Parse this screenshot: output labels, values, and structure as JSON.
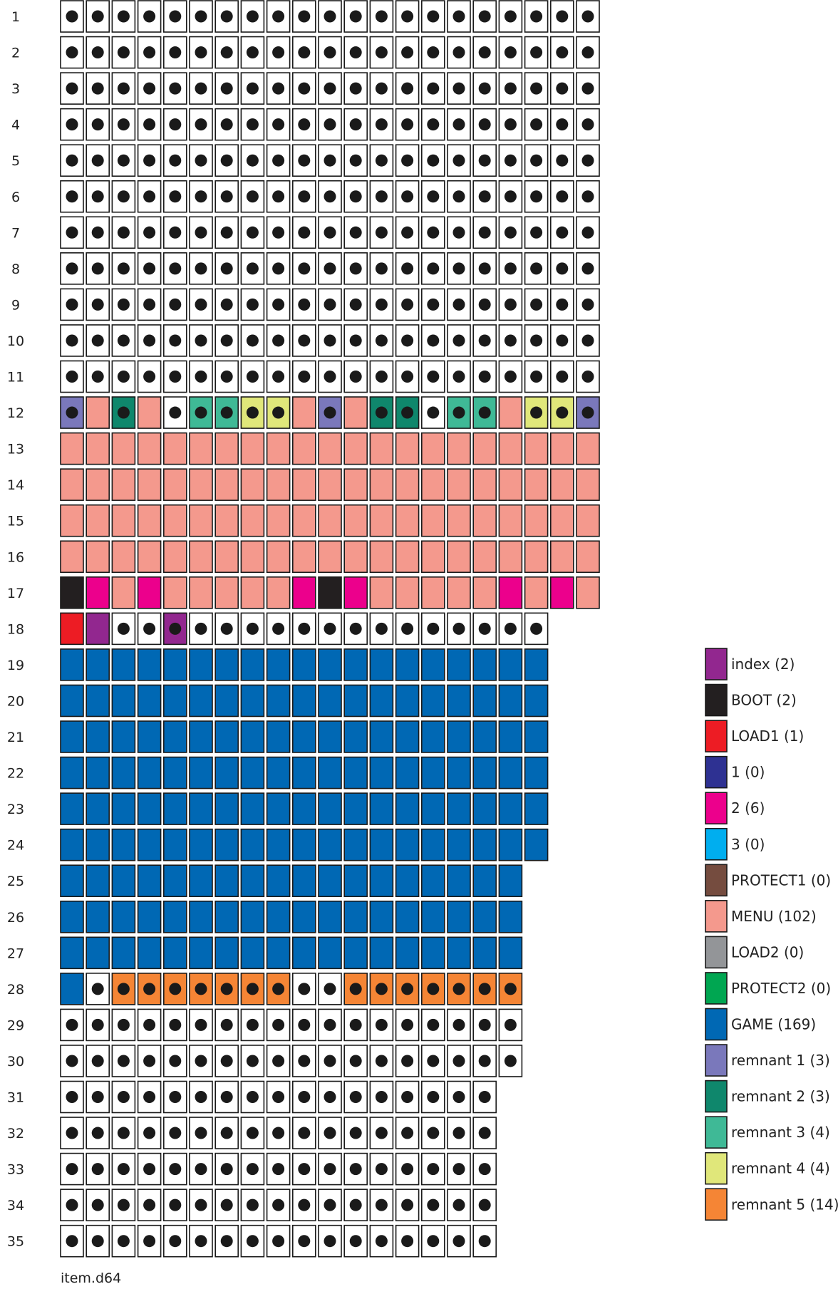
{
  "diagram": {
    "filename": "item.d64",
    "colors": {
      "empty": "#ffffff",
      "index": "#92278f",
      "BOOT": "#231f20",
      "LOAD1": "#ed1c24",
      "1": "#2e3192",
      "2": "#ec008c",
      "3": "#00aeef",
      "PROTECT1": "#754c3f",
      "MENU": "#f4998d",
      "LOAD2": "#939598",
      "PROTECT2": "#00a651",
      "GAME": "#0068b4",
      "remnant 1": "#7a78bb",
      "remnant 2": "#0f876c",
      "remnant 3": "#3fb996",
      "remnant 4": "#e0e77a",
      "remnant 5": "#f58535"
    },
    "legend": [
      {
        "key": "index",
        "label": "index (2)"
      },
      {
        "key": "BOOT",
        "label": "BOOT (2)"
      },
      {
        "key": "LOAD1",
        "label": "LOAD1 (1)"
      },
      {
        "key": "1",
        "label": "1 (0)"
      },
      {
        "key": "2",
        "label": "2 (6)"
      },
      {
        "key": "3",
        "label": "3 (0)"
      },
      {
        "key": "PROTECT1",
        "label": "PROTECT1 (0)"
      },
      {
        "key": "MENU",
        "label": "MENU (102)"
      },
      {
        "key": "LOAD2",
        "label": "LOAD2 (0)"
      },
      {
        "key": "PROTECT2",
        "label": "PROTECT2 (0)"
      },
      {
        "key": "GAME",
        "label": "GAME (169)"
      },
      {
        "key": "remnant 1",
        "label": "remnant 1 (3)"
      },
      {
        "key": "remnant 2",
        "label": "remnant 2 (3)"
      },
      {
        "key": "remnant 3",
        "label": "remnant 3 (4)"
      },
      {
        "key": "remnant 4",
        "label": "remnant 4 (4)"
      },
      {
        "key": "remnant 5",
        "label": "remnant 5 (14)"
      }
    ],
    "tracks": [
      {
        "label": "1",
        "cells": [
          "*E",
          "*E",
          "*E",
          "*E",
          "*E",
          "*E",
          "*E",
          "*E",
          "*E",
          "*E",
          "*E",
          "*E",
          "*E",
          "*E",
          "*E",
          "*E",
          "*E",
          "*E",
          "*E",
          "*E",
          "*E"
        ]
      },
      {
        "label": "2",
        "cells": [
          "*E",
          "*E",
          "*E",
          "*E",
          "*E",
          "*E",
          "*E",
          "*E",
          "*E",
          "*E",
          "*E",
          "*E",
          "*E",
          "*E",
          "*E",
          "*E",
          "*E",
          "*E",
          "*E",
          "*E",
          "*E"
        ]
      },
      {
        "label": "3",
        "cells": [
          "*E",
          "*E",
          "*E",
          "*E",
          "*E",
          "*E",
          "*E",
          "*E",
          "*E",
          "*E",
          "*E",
          "*E",
          "*E",
          "*E",
          "*E",
          "*E",
          "*E",
          "*E",
          "*E",
          "*E",
          "*E"
        ]
      },
      {
        "label": "4",
        "cells": [
          "*E",
          "*E",
          "*E",
          "*E",
          "*E",
          "*E",
          "*E",
          "*E",
          "*E",
          "*E",
          "*E",
          "*E",
          "*E",
          "*E",
          "*E",
          "*E",
          "*E",
          "*E",
          "*E",
          "*E",
          "*E"
        ]
      },
      {
        "label": "5",
        "cells": [
          "*E",
          "*E",
          "*E",
          "*E",
          "*E",
          "*E",
          "*E",
          "*E",
          "*E",
          "*E",
          "*E",
          "*E",
          "*E",
          "*E",
          "*E",
          "*E",
          "*E",
          "*E",
          "*E",
          "*E",
          "*E"
        ]
      },
      {
        "label": "6",
        "cells": [
          "*E",
          "*E",
          "*E",
          "*E",
          "*E",
          "*E",
          "*E",
          "*E",
          "*E",
          "*E",
          "*E",
          "*E",
          "*E",
          "*E",
          "*E",
          "*E",
          "*E",
          "*E",
          "*E",
          "*E",
          "*E"
        ]
      },
      {
        "label": "7",
        "cells": [
          "*E",
          "*E",
          "*E",
          "*E",
          "*E",
          "*E",
          "*E",
          "*E",
          "*E",
          "*E",
          "*E",
          "*E",
          "*E",
          "*E",
          "*E",
          "*E",
          "*E",
          "*E",
          "*E",
          "*E",
          "*E"
        ]
      },
      {
        "label": "8",
        "cells": [
          "*E",
          "*E",
          "*E",
          "*E",
          "*E",
          "*E",
          "*E",
          "*E",
          "*E",
          "*E",
          "*E",
          "*E",
          "*E",
          "*E",
          "*E",
          "*E",
          "*E",
          "*E",
          "*E",
          "*E",
          "*E"
        ]
      },
      {
        "label": "9",
        "cells": [
          "*E",
          "*E",
          "*E",
          "*E",
          "*E",
          "*E",
          "*E",
          "*E",
          "*E",
          "*E",
          "*E",
          "*E",
          "*E",
          "*E",
          "*E",
          "*E",
          "*E",
          "*E",
          "*E",
          "*E",
          "*E"
        ]
      },
      {
        "label": "10",
        "cells": [
          "*E",
          "*E",
          "*E",
          "*E",
          "*E",
          "*E",
          "*E",
          "*E",
          "*E",
          "*E",
          "*E",
          "*E",
          "*E",
          "*E",
          "*E",
          "*E",
          "*E",
          "*E",
          "*E",
          "*E",
          "*E"
        ]
      },
      {
        "label": "11",
        "cells": [
          "*E",
          "*E",
          "*E",
          "*E",
          "*E",
          "*E",
          "*E",
          "*E",
          "*E",
          "*E",
          "*E",
          "*E",
          "*E",
          "*E",
          "*E",
          "*E",
          "*E",
          "*E",
          "*E",
          "*E",
          "*E"
        ]
      },
      {
        "label": "12",
        "cells": [
          "*R1",
          "MENU",
          "*R2",
          "MENU",
          "*E",
          "*R3",
          "*R3",
          "*R4",
          "*R4",
          "MENU",
          "*R1",
          "MENU",
          "*R2",
          "*R2",
          "*E",
          "*R3",
          "*R3",
          "MENU",
          "*R4",
          "*R4",
          "*R1"
        ]
      },
      {
        "label": "13",
        "cells": [
          "MENU",
          "MENU",
          "MENU",
          "MENU",
          "MENU",
          "MENU",
          "MENU",
          "MENU",
          "MENU",
          "MENU",
          "MENU",
          "MENU",
          "MENU",
          "MENU",
          "MENU",
          "MENU",
          "MENU",
          "MENU",
          "MENU",
          "MENU",
          "MENU"
        ]
      },
      {
        "label": "14",
        "cells": [
          "MENU",
          "MENU",
          "MENU",
          "MENU",
          "MENU",
          "MENU",
          "MENU",
          "MENU",
          "MENU",
          "MENU",
          "MENU",
          "MENU",
          "MENU",
          "MENU",
          "MENU",
          "MENU",
          "MENU",
          "MENU",
          "MENU",
          "MENU",
          "MENU"
        ]
      },
      {
        "label": "15",
        "cells": [
          "MENU",
          "MENU",
          "MENU",
          "MENU",
          "MENU",
          "MENU",
          "MENU",
          "MENU",
          "MENU",
          "MENU",
          "MENU",
          "MENU",
          "MENU",
          "MENU",
          "MENU",
          "MENU",
          "MENU",
          "MENU",
          "MENU",
          "MENU",
          "MENU"
        ]
      },
      {
        "label": "16",
        "cells": [
          "MENU",
          "MENU",
          "MENU",
          "MENU",
          "MENU",
          "MENU",
          "MENU",
          "MENU",
          "MENU",
          "MENU",
          "MENU",
          "MENU",
          "MENU",
          "MENU",
          "MENU",
          "MENU",
          "MENU",
          "MENU",
          "MENU",
          "MENU",
          "MENU"
        ]
      },
      {
        "label": "17",
        "cells": [
          "BOOT",
          "2",
          "MENU",
          "2",
          "MENU",
          "MENU",
          "MENU",
          "MENU",
          "MENU",
          "2",
          "BOOT",
          "2",
          "MENU",
          "MENU",
          "MENU",
          "MENU",
          "MENU",
          "2",
          "MENU",
          "2",
          "MENU"
        ]
      },
      {
        "label": "18",
        "cells": [
          "LOAD1",
          "index",
          "*E",
          "*E",
          "*index",
          "*E",
          "*E",
          "*E",
          "*E",
          "*E",
          "*E",
          "*E",
          "*E",
          "*E",
          "*E",
          "*E",
          "*E",
          "*E",
          "*E"
        ]
      },
      {
        "label": "19",
        "cells": [
          "GAME",
          "GAME",
          "GAME",
          "GAME",
          "GAME",
          "GAME",
          "GAME",
          "GAME",
          "GAME",
          "GAME",
          "GAME",
          "GAME",
          "GAME",
          "GAME",
          "GAME",
          "GAME",
          "GAME",
          "GAME",
          "GAME"
        ]
      },
      {
        "label": "20",
        "cells": [
          "GAME",
          "GAME",
          "GAME",
          "GAME",
          "GAME",
          "GAME",
          "GAME",
          "GAME",
          "GAME",
          "GAME",
          "GAME",
          "GAME",
          "GAME",
          "GAME",
          "GAME",
          "GAME",
          "GAME",
          "GAME",
          "GAME"
        ]
      },
      {
        "label": "21",
        "cells": [
          "GAME",
          "GAME",
          "GAME",
          "GAME",
          "GAME",
          "GAME",
          "GAME",
          "GAME",
          "GAME",
          "GAME",
          "GAME",
          "GAME",
          "GAME",
          "GAME",
          "GAME",
          "GAME",
          "GAME",
          "GAME",
          "GAME"
        ]
      },
      {
        "label": "22",
        "cells": [
          "GAME",
          "GAME",
          "GAME",
          "GAME",
          "GAME",
          "GAME",
          "GAME",
          "GAME",
          "GAME",
          "GAME",
          "GAME",
          "GAME",
          "GAME",
          "GAME",
          "GAME",
          "GAME",
          "GAME",
          "GAME",
          "GAME"
        ]
      },
      {
        "label": "23",
        "cells": [
          "GAME",
          "GAME",
          "GAME",
          "GAME",
          "GAME",
          "GAME",
          "GAME",
          "GAME",
          "GAME",
          "GAME",
          "GAME",
          "GAME",
          "GAME",
          "GAME",
          "GAME",
          "GAME",
          "GAME",
          "GAME",
          "GAME"
        ]
      },
      {
        "label": "24",
        "cells": [
          "GAME",
          "GAME",
          "GAME",
          "GAME",
          "GAME",
          "GAME",
          "GAME",
          "GAME",
          "GAME",
          "GAME",
          "GAME",
          "GAME",
          "GAME",
          "GAME",
          "GAME",
          "GAME",
          "GAME",
          "GAME",
          "GAME"
        ]
      },
      {
        "label": "25",
        "cells": [
          "GAME",
          "GAME",
          "GAME",
          "GAME",
          "GAME",
          "GAME",
          "GAME",
          "GAME",
          "GAME",
          "GAME",
          "GAME",
          "GAME",
          "GAME",
          "GAME",
          "GAME",
          "GAME",
          "GAME",
          "GAME"
        ]
      },
      {
        "label": "26",
        "cells": [
          "GAME",
          "GAME",
          "GAME",
          "GAME",
          "GAME",
          "GAME",
          "GAME",
          "GAME",
          "GAME",
          "GAME",
          "GAME",
          "GAME",
          "GAME",
          "GAME",
          "GAME",
          "GAME",
          "GAME",
          "GAME"
        ]
      },
      {
        "label": "27",
        "cells": [
          "GAME",
          "GAME",
          "GAME",
          "GAME",
          "GAME",
          "GAME",
          "GAME",
          "GAME",
          "GAME",
          "GAME",
          "GAME",
          "GAME",
          "GAME",
          "GAME",
          "GAME",
          "GAME",
          "GAME",
          "GAME"
        ]
      },
      {
        "label": "28",
        "cells": [
          "GAME",
          "*E",
          "*R5",
          "*R5",
          "*R5",
          "*R5",
          "*R5",
          "*R5",
          "*R5",
          "*E",
          "*E",
          "*R5",
          "*R5",
          "*R5",
          "*R5",
          "*R5",
          "*R5",
          "*R5"
        ]
      },
      {
        "label": "29",
        "cells": [
          "*E",
          "*E",
          "*E",
          "*E",
          "*E",
          "*E",
          "*E",
          "*E",
          "*E",
          "*E",
          "*E",
          "*E",
          "*E",
          "*E",
          "*E",
          "*E",
          "*E",
          "*E"
        ]
      },
      {
        "label": "30",
        "cells": [
          "*E",
          "*E",
          "*E",
          "*E",
          "*E",
          "*E",
          "*E",
          "*E",
          "*E",
          "*E",
          "*E",
          "*E",
          "*E",
          "*E",
          "*E",
          "*E",
          "*E",
          "*E"
        ]
      },
      {
        "label": "31",
        "cells": [
          "*E",
          "*E",
          "*E",
          "*E",
          "*E",
          "*E",
          "*E",
          "*E",
          "*E",
          "*E",
          "*E",
          "*E",
          "*E",
          "*E",
          "*E",
          "*E",
          "*E"
        ]
      },
      {
        "label": "32",
        "cells": [
          "*E",
          "*E",
          "*E",
          "*E",
          "*E",
          "*E",
          "*E",
          "*E",
          "*E",
          "*E",
          "*E",
          "*E",
          "*E",
          "*E",
          "*E",
          "*E",
          "*E"
        ]
      },
      {
        "label": "33",
        "cells": [
          "*E",
          "*E",
          "*E",
          "*E",
          "*E",
          "*E",
          "*E",
          "*E",
          "*E",
          "*E",
          "*E",
          "*E",
          "*E",
          "*E",
          "*E",
          "*E",
          "*E"
        ]
      },
      {
        "label": "34",
        "cells": [
          "*E",
          "*E",
          "*E",
          "*E",
          "*E",
          "*E",
          "*E",
          "*E",
          "*E",
          "*E",
          "*E",
          "*E",
          "*E",
          "*E",
          "*E",
          "*E",
          "*E"
        ]
      },
      {
        "label": "35",
        "cells": [
          "*E",
          "*E",
          "*E",
          "*E",
          "*E",
          "*E",
          "*E",
          "*E",
          "*E",
          "*E",
          "*E",
          "*E",
          "*E",
          "*E",
          "*E",
          "*E",
          "*E"
        ]
      }
    ]
  }
}
